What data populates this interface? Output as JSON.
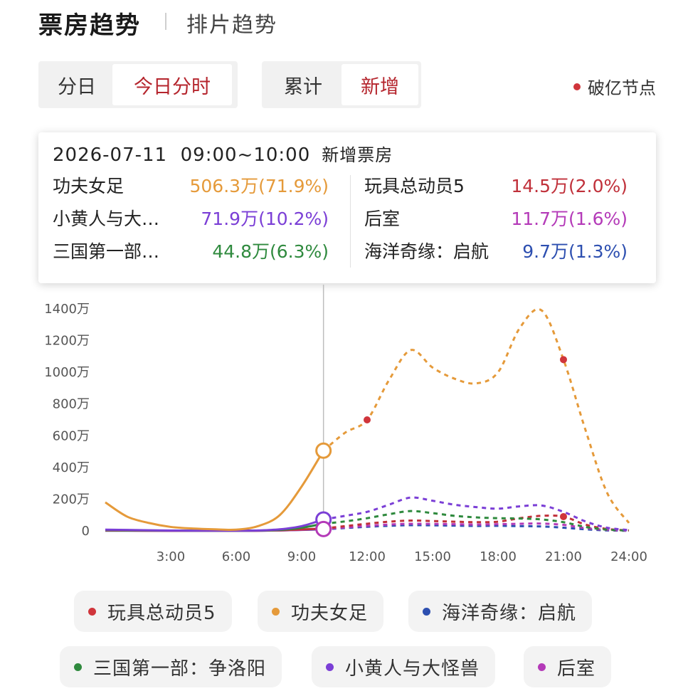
{
  "header": {
    "title": "票房趋势",
    "subtitle": "排片趋势"
  },
  "toggle_time": {
    "options": [
      "分日",
      "今日分时"
    ],
    "active": "今日分时"
  },
  "toggle_mode": {
    "options": [
      "累计",
      "新增"
    ],
    "active": "新增"
  },
  "break_legend": {
    "label": "破亿节点",
    "color": "#d0353b"
  },
  "tooltip": {
    "datetime": "2026-07-11  09:00~10:00",
    "metric": "新增票房",
    "left": [
      {
        "name": "功夫女足",
        "value": "506.3万(71.9%)",
        "color": "#e59a3a"
      },
      {
        "name": "小黄人与大…",
        "value": "71.9万(10.2%)",
        "color": "#7b3fd6"
      },
      {
        "name": "三国第一部…",
        "value": "44.8万(6.3%)",
        "color": "#2f8a3e"
      }
    ],
    "right": [
      {
        "name": "玩具总动员5",
        "value": "14.5万(2.0%)",
        "color": "#c0303a"
      },
      {
        "name": "后室",
        "value": "11.7万(1.6%)",
        "color": "#b43ab8"
      },
      {
        "name": "海洋奇缘：启航",
        "value": "9.7万(1.3%)",
        "color": "#2d4fb0"
      }
    ]
  },
  "chart_data": {
    "type": "line",
    "x_ticks": [
      "3:00",
      "6:00",
      "9:00",
      "12:00",
      "15:00",
      "18:00",
      "21:00",
      "24:00"
    ],
    "y_ticks": [
      "0",
      "200万",
      "400万",
      "600万",
      "800万",
      "1000万",
      "1200万",
      "1400万"
    ],
    "ylim": [
      0,
      1400
    ],
    "xlim": [
      0,
      24
    ],
    "highlight_x": 10,
    "series": [
      {
        "name": "功夫女足",
        "color": "#e59a3a",
        "x": [
          0,
          1,
          2,
          3,
          4,
          5,
          6,
          7,
          8,
          9,
          10,
          11,
          12,
          13,
          14,
          15,
          16,
          17,
          18,
          19,
          20,
          21,
          22,
          23,
          24
        ],
        "y": [
          180,
          90,
          50,
          25,
          15,
          10,
          8,
          30,
          100,
          280,
          506,
          620,
          700,
          950,
          1140,
          1030,
          960,
          930,
          1000,
          1280,
          1390,
          1080,
          640,
          240,
          50
        ],
        "break_points": [
          12,
          21
        ]
      },
      {
        "name": "小黄人与大怪兽",
        "color": "#7b3fd6",
        "x": [
          0,
          1,
          2,
          3,
          4,
          5,
          6,
          7,
          8,
          9,
          10,
          11,
          12,
          13,
          14,
          15,
          16,
          17,
          18,
          19,
          20,
          21,
          22,
          23,
          24
        ],
        "y": [
          8,
          6,
          4,
          2,
          1,
          1,
          1,
          3,
          10,
          30,
          72,
          95,
          120,
          165,
          210,
          190,
          165,
          150,
          140,
          155,
          160,
          120,
          60,
          20,
          5
        ]
      },
      {
        "name": "三国第一部：争洛阳",
        "color": "#2f8a3e",
        "x": [
          0,
          1,
          2,
          3,
          4,
          5,
          6,
          7,
          8,
          9,
          10,
          11,
          12,
          13,
          14,
          15,
          16,
          17,
          18,
          19,
          20,
          21,
          22,
          23,
          24
        ],
        "y": [
          5,
          4,
          3,
          2,
          1,
          1,
          1,
          2,
          6,
          20,
          45,
          60,
          80,
          105,
          125,
          112,
          95,
          85,
          80,
          78,
          72,
          55,
          25,
          8,
          2
        ]
      },
      {
        "name": "玩具总动员5",
        "color": "#c0303a",
        "x": [
          0,
          1,
          2,
          3,
          4,
          5,
          6,
          7,
          8,
          9,
          10,
          11,
          12,
          13,
          14,
          15,
          16,
          17,
          18,
          19,
          20,
          21,
          22,
          23,
          24
        ],
        "y": [
          3,
          2,
          1,
          1,
          0,
          0,
          0,
          1,
          4,
          9,
          15,
          30,
          45,
          58,
          65,
          62,
          58,
          55,
          58,
          80,
          95,
          90,
          40,
          12,
          3
        ],
        "break_points": [
          21
        ]
      },
      {
        "name": "后室",
        "color": "#b43ab8",
        "x": [
          0,
          1,
          2,
          3,
          4,
          5,
          6,
          7,
          8,
          9,
          10,
          11,
          12,
          13,
          14,
          15,
          16,
          17,
          18,
          19,
          20,
          21,
          22,
          23,
          24
        ],
        "y": [
          2,
          2,
          1,
          1,
          0,
          0,
          0,
          1,
          3,
          7,
          12,
          22,
          32,
          40,
          45,
          44,
          42,
          40,
          42,
          45,
          46,
          38,
          18,
          6,
          1
        ]
      },
      {
        "name": "海洋奇缘：启航",
        "color": "#2d4fb0",
        "x": [
          0,
          1,
          2,
          3,
          4,
          5,
          6,
          7,
          8,
          9,
          10,
          11,
          12,
          13,
          14,
          15,
          16,
          17,
          18,
          19,
          20,
          21,
          22,
          23,
          24
        ],
        "y": [
          1,
          1,
          1,
          0,
          0,
          0,
          0,
          1,
          3,
          6,
          10,
          18,
          26,
          32,
          36,
          35,
          33,
          31,
          32,
          30,
          28,
          20,
          10,
          3,
          1
        ]
      }
    ]
  },
  "legend": [
    {
      "name": "玩具总动员5",
      "color": "#d0353b"
    },
    {
      "name": "功夫女足",
      "color": "#e59a3a"
    },
    {
      "name": "海洋奇缘：启航",
      "color": "#2d4fb0"
    },
    {
      "name": "三国第一部：争洛阳",
      "color": "#2f8a3e"
    },
    {
      "name": "小黄人与大怪兽",
      "color": "#7b3fd6"
    },
    {
      "name": "后室",
      "color": "#b43ab8"
    }
  ]
}
